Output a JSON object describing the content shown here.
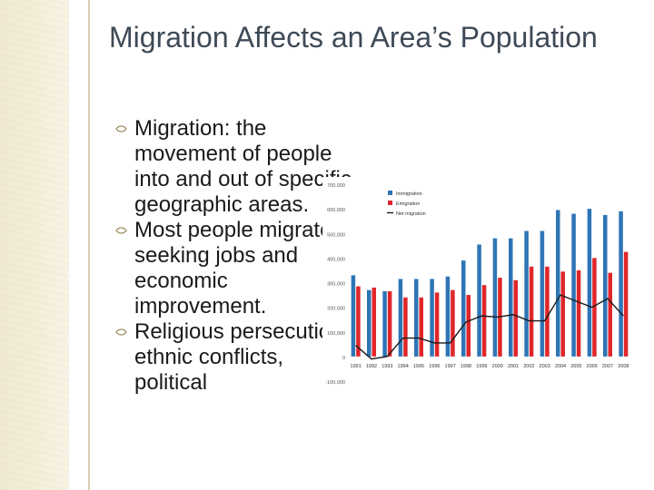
{
  "slide": {
    "title": "Migration Affects an Area’s Population",
    "bullets": [
      "Migration: the movement of people into and out of specific geographic areas.",
      "Most people migrate seeking jobs and economic improvement.",
      "Religious persecution, ethnic conflicts, political"
    ]
  },
  "chart_data": {
    "type": "bar",
    "categories": [
      "1991",
      "1992",
      "1993",
      "1994",
      "1995",
      "1996",
      "1997",
      "1998",
      "1999",
      "2000",
      "2001",
      "2002",
      "2003",
      "2004",
      "2005",
      "2006",
      "2007",
      "2008"
    ],
    "ylim": [
      -100000,
      700000
    ],
    "y_ticks": [
      "700,000",
      "600,000",
      "500,000",
      "400,000",
      "300,000",
      "200,000",
      "100,000",
      "0",
      "-100,000"
    ],
    "y_tick_values": [
      700000,
      600000,
      500000,
      400000,
      300000,
      200000,
      100000,
      0,
      -100000
    ],
    "series": [
      {
        "name": "Immigration",
        "type": "bar",
        "color": "#2e75b6",
        "values": [
          330000,
          270000,
          265000,
          315000,
          315000,
          315000,
          325000,
          390000,
          455000,
          480000,
          480000,
          510000,
          510000,
          595000,
          580000,
          600000,
          575000,
          590000
        ]
      },
      {
        "name": "Emigration",
        "type": "bar",
        "color": "#e0262a",
        "values": [
          285000,
          280000,
          265000,
          240000,
          240000,
          260000,
          270000,
          250000,
          290000,
          320000,
          310000,
          365000,
          365000,
          345000,
          350000,
          400000,
          340000,
          425000
        ]
      },
      {
        "name": "Net migration",
        "type": "line",
        "color": "#1a1a1a",
        "values": [
          45000,
          -10000,
          0,
          75000,
          75000,
          55000,
          55000,
          140000,
          165000,
          160000,
          170000,
          145000,
          145000,
          250000,
          225000,
          200000,
          235000,
          165000
        ]
      }
    ],
    "legend_position": "top-right",
    "grid": false
  }
}
